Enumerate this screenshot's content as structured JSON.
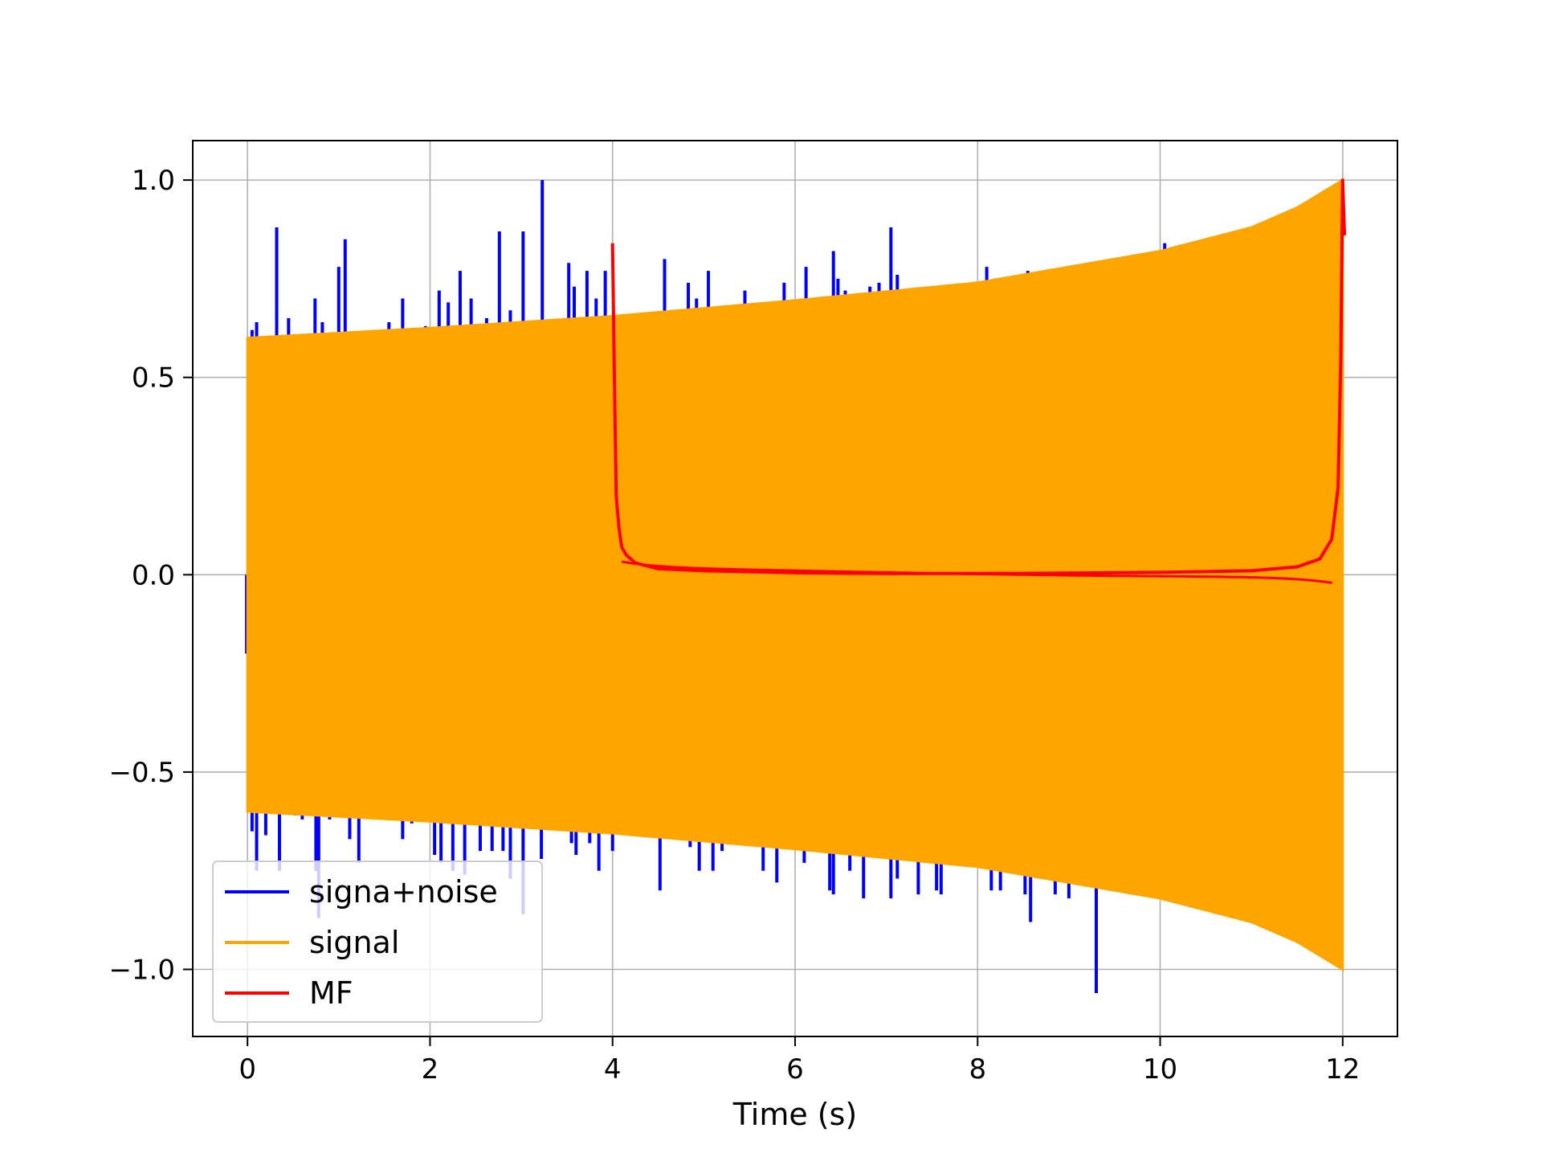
{
  "chart_data": {
    "type": "line",
    "title": "",
    "xlabel": "Time (s)",
    "ylabel": "",
    "xlim": [
      -0.6,
      12.6
    ],
    "ylim": [
      -1.17,
      1.1
    ],
    "xticks": [
      0,
      2,
      4,
      6,
      8,
      10,
      12
    ],
    "xtick_labels": [
      "0",
      "2",
      "4",
      "6",
      "8",
      "10",
      "12"
    ],
    "yticks": [
      -1.0,
      -0.5,
      0.0,
      0.5,
      1.0
    ],
    "ytick_labels": [
      "−1.0",
      "−0.5",
      "0.0",
      "0.5",
      "1.0"
    ],
    "grid": true,
    "legend_position": "lower-left",
    "series": [
      {
        "name": "signa+noise",
        "color": "#0000ff",
        "spikes": [
          {
            "x": 0.05,
            "y": 0.62
          },
          {
            "x": 0.1,
            "y": 0.64
          },
          {
            "x": 0.15,
            "y": 0.6
          },
          {
            "x": 0.32,
            "y": 0.88
          },
          {
            "x": 0.45,
            "y": 0.65
          },
          {
            "x": 0.74,
            "y": 0.7
          },
          {
            "x": 0.82,
            "y": 0.64
          },
          {
            "x": 1.0,
            "y": 0.78
          },
          {
            "x": 1.07,
            "y": 0.85
          },
          {
            "x": 1.55,
            "y": 0.64
          },
          {
            "x": 1.7,
            "y": 0.7
          },
          {
            "x": 1.95,
            "y": 0.63
          },
          {
            "x": 2.1,
            "y": 0.72
          },
          {
            "x": 2.2,
            "y": 0.69
          },
          {
            "x": 2.33,
            "y": 0.77
          },
          {
            "x": 2.45,
            "y": 0.7
          },
          {
            "x": 2.62,
            "y": 0.65
          },
          {
            "x": 2.76,
            "y": 0.87
          },
          {
            "x": 2.88,
            "y": 0.67
          },
          {
            "x": 3.02,
            "y": 0.87
          },
          {
            "x": 3.23,
            "y": 1.0
          },
          {
            "x": 3.52,
            "y": 0.79
          },
          {
            "x": 3.58,
            "y": 0.73
          },
          {
            "x": 3.72,
            "y": 0.77
          },
          {
            "x": 3.82,
            "y": 0.7
          },
          {
            "x": 3.92,
            "y": 0.77
          },
          {
            "x": 4.57,
            "y": 0.8
          },
          {
            "x": 4.83,
            "y": 0.74
          },
          {
            "x": 4.92,
            "y": 0.7
          },
          {
            "x": 5.05,
            "y": 0.77
          },
          {
            "x": 5.1,
            "y": 0.67
          },
          {
            "x": 5.45,
            "y": 0.72
          },
          {
            "x": 5.88,
            "y": 0.74
          },
          {
            "x": 5.93,
            "y": 0.67
          },
          {
            "x": 6.12,
            "y": 0.78
          },
          {
            "x": 6.42,
            "y": 0.82
          },
          {
            "x": 6.47,
            "y": 0.75
          },
          {
            "x": 6.55,
            "y": 0.72
          },
          {
            "x": 6.72,
            "y": 0.71
          },
          {
            "x": 6.82,
            "y": 0.73
          },
          {
            "x": 6.92,
            "y": 0.74
          },
          {
            "x": 7.05,
            "y": 0.88
          },
          {
            "x": 7.12,
            "y": 0.76
          },
          {
            "x": 8.1,
            "y": 0.78
          },
          {
            "x": 8.55,
            "y": 0.77
          },
          {
            "x": 8.7,
            "y": 0.75
          },
          {
            "x": 8.95,
            "y": 0.78
          },
          {
            "x": 10.05,
            "y": 0.84
          },
          {
            "x": -0.01,
            "y": -0.2
          },
          {
            "x": 0.05,
            "y": -0.65
          },
          {
            "x": 0.1,
            "y": -0.75
          },
          {
            "x": 0.2,
            "y": -0.66
          },
          {
            "x": 0.35,
            "y": -0.75
          },
          {
            "x": 0.52,
            "y": -0.61
          },
          {
            "x": 0.6,
            "y": -0.62
          },
          {
            "x": 0.75,
            "y": -0.75
          },
          {
            "x": 0.78,
            "y": -0.87
          },
          {
            "x": 0.9,
            "y": -0.62
          },
          {
            "x": 1.12,
            "y": -0.67
          },
          {
            "x": 1.22,
            "y": -0.73
          },
          {
            "x": 1.7,
            "y": -0.67
          },
          {
            "x": 1.8,
            "y": -0.63
          },
          {
            "x": 2.05,
            "y": -0.71
          },
          {
            "x": 2.12,
            "y": -0.73
          },
          {
            "x": 2.25,
            "y": -0.75
          },
          {
            "x": 2.38,
            "y": -0.76
          },
          {
            "x": 2.55,
            "y": -0.7
          },
          {
            "x": 2.68,
            "y": -0.7
          },
          {
            "x": 2.8,
            "y": -0.7
          },
          {
            "x": 2.88,
            "y": -0.77
          },
          {
            "x": 3.02,
            "y": -0.86
          },
          {
            "x": 3.22,
            "y": -0.72
          },
          {
            "x": 3.55,
            "y": -0.68
          },
          {
            "x": 3.6,
            "y": -0.71
          },
          {
            "x": 3.75,
            "y": -0.68
          },
          {
            "x": 3.85,
            "y": -0.75
          },
          {
            "x": 4.0,
            "y": -0.7
          },
          {
            "x": 4.52,
            "y": -0.8
          },
          {
            "x": 4.85,
            "y": -0.69
          },
          {
            "x": 4.95,
            "y": -0.75
          },
          {
            "x": 5.1,
            "y": -0.75
          },
          {
            "x": 5.2,
            "y": -0.7
          },
          {
            "x": 5.65,
            "y": -0.75
          },
          {
            "x": 5.8,
            "y": -0.78
          },
          {
            "x": 6.1,
            "y": -0.73
          },
          {
            "x": 6.38,
            "y": -0.8
          },
          {
            "x": 6.42,
            "y": -0.81
          },
          {
            "x": 6.6,
            "y": -0.75
          },
          {
            "x": 6.75,
            "y": -0.82
          },
          {
            "x": 7.05,
            "y": -0.82
          },
          {
            "x": 7.12,
            "y": -0.77
          },
          {
            "x": 7.35,
            "y": -0.81
          },
          {
            "x": 7.55,
            "y": -0.8
          },
          {
            "x": 7.6,
            "y": -0.81
          },
          {
            "x": 8.15,
            "y": -0.8
          },
          {
            "x": 8.25,
            "y": -0.8
          },
          {
            "x": 8.52,
            "y": -0.81
          },
          {
            "x": 8.58,
            "y": -0.88
          },
          {
            "x": 8.85,
            "y": -0.81
          },
          {
            "x": 9.0,
            "y": -0.82
          },
          {
            "x": 9.3,
            "y": -1.06
          }
        ]
      },
      {
        "name": "signal",
        "color": "#ffa500",
        "amplitude_points": [
          {
            "x": 0,
            "y": 0.6
          },
          {
            "x": 2,
            "y": 0.625
          },
          {
            "x": 4,
            "y": 0.655
          },
          {
            "x": 6,
            "y": 0.695
          },
          {
            "x": 8,
            "y": 0.74
          },
          {
            "x": 10,
            "y": 0.82
          },
          {
            "x": 11,
            "y": 0.88
          },
          {
            "x": 11.5,
            "y": 0.93
          },
          {
            "x": 12,
            "y": 1.0
          }
        ]
      },
      {
        "name": "MF",
        "color": "#ff0000",
        "points": [
          {
            "x": 4.0,
            "y": 0.84
          },
          {
            "x": 4.02,
            "y": 0.5
          },
          {
            "x": 4.04,
            "y": 0.2
          },
          {
            "x": 4.07,
            "y": 0.12
          },
          {
            "x": 4.1,
            "y": 0.07
          },
          {
            "x": 4.15,
            "y": 0.05
          },
          {
            "x": 4.25,
            "y": 0.03
          },
          {
            "x": 4.5,
            "y": 0.015
          },
          {
            "x": 5.0,
            "y": 0.01
          },
          {
            "x": 6.0,
            "y": 0.005
          },
          {
            "x": 7.0,
            "y": 0.003
          },
          {
            "x": 8.0,
            "y": 0.003
          },
          {
            "x": 9.0,
            "y": 0.004
          },
          {
            "x": 10.0,
            "y": 0.006
          },
          {
            "x": 11.0,
            "y": 0.01
          },
          {
            "x": 11.5,
            "y": 0.02
          },
          {
            "x": 11.75,
            "y": 0.04
          },
          {
            "x": 11.88,
            "y": 0.09
          },
          {
            "x": 11.95,
            "y": 0.22
          },
          {
            "x": 11.98,
            "y": 0.55
          },
          {
            "x": 12.0,
            "y": 1.0
          },
          {
            "x": 12.02,
            "y": 0.86
          }
        ]
      }
    ]
  }
}
